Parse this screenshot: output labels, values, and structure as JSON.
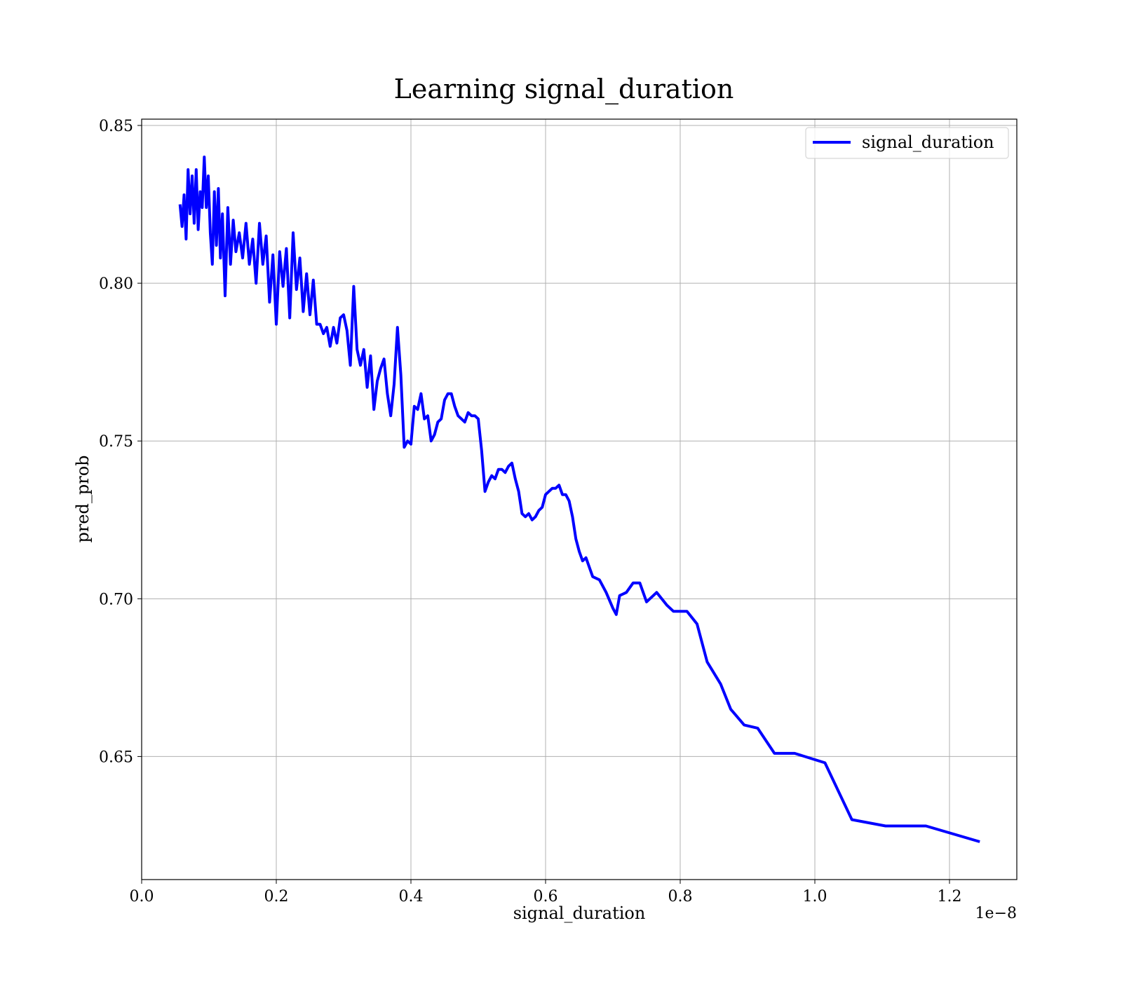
{
  "chart_data": {
    "type": "line",
    "title": "Learning signal_duration",
    "xlabel": "signal_duration",
    "ylabel": "pred_prob",
    "x_offset_label": "1e−8",
    "xlim": [
      0.0,
      1.3
    ],
    "ylim": [
      0.611,
      0.852
    ],
    "x_ticks": [
      0.0,
      0.2,
      0.4,
      0.6,
      0.8,
      1.0,
      1.2
    ],
    "x_tick_labels": [
      "0.0",
      "0.2",
      "0.4",
      "0.6",
      "0.8",
      "1.0",
      "1.2"
    ],
    "y_ticks": [
      0.65,
      0.7,
      0.75,
      0.8,
      0.85
    ],
    "y_tick_labels": [
      "0.65",
      "0.70",
      "0.75",
      "0.80",
      "0.85"
    ],
    "grid": true,
    "legend_position": "top-right",
    "series": [
      {
        "name": "signal_duration",
        "color": "#0000ff",
        "x": [
          0.057,
          0.06,
          0.063,
          0.066,
          0.069,
          0.072,
          0.075,
          0.078,
          0.081,
          0.084,
          0.087,
          0.09,
          0.093,
          0.096,
          0.099,
          0.102,
          0.105,
          0.108,
          0.111,
          0.114,
          0.117,
          0.12,
          0.124,
          0.128,
          0.132,
          0.136,
          0.14,
          0.145,
          0.15,
          0.155,
          0.16,
          0.165,
          0.17,
          0.175,
          0.18,
          0.185,
          0.19,
          0.195,
          0.2,
          0.205,
          0.21,
          0.215,
          0.22,
          0.225,
          0.23,
          0.235,
          0.24,
          0.245,
          0.25,
          0.255,
          0.26,
          0.265,
          0.27,
          0.275,
          0.28,
          0.285,
          0.29,
          0.295,
          0.3,
          0.305,
          0.31,
          0.315,
          0.32,
          0.325,
          0.33,
          0.335,
          0.34,
          0.345,
          0.35,
          0.355,
          0.36,
          0.365,
          0.37,
          0.375,
          0.38,
          0.385,
          0.39,
          0.395,
          0.4,
          0.405,
          0.41,
          0.415,
          0.42,
          0.425,
          0.43,
          0.435,
          0.44,
          0.445,
          0.45,
          0.455,
          0.46,
          0.465,
          0.47,
          0.475,
          0.48,
          0.485,
          0.49,
          0.495,
          0.5,
          0.505,
          0.51,
          0.515,
          0.52,
          0.525,
          0.53,
          0.535,
          0.54,
          0.545,
          0.55,
          0.555,
          0.56,
          0.565,
          0.57,
          0.575,
          0.58,
          0.585,
          0.59,
          0.595,
          0.6,
          0.605,
          0.61,
          0.615,
          0.62,
          0.625,
          0.63,
          0.635,
          0.64,
          0.645,
          0.65,
          0.655,
          0.66,
          0.67,
          0.68,
          0.69,
          0.7,
          0.705,
          0.71,
          0.72,
          0.73,
          0.74,
          0.75,
          0.765,
          0.78,
          0.79,
          0.81,
          0.825,
          0.84,
          0.86,
          0.875,
          0.895,
          0.915,
          0.94,
          0.97,
          1.015,
          1.055,
          1.105,
          1.165,
          1.245
        ],
        "values": [
          0.825,
          0.818,
          0.828,
          0.814,
          0.836,
          0.822,
          0.834,
          0.819,
          0.836,
          0.817,
          0.829,
          0.824,
          0.84,
          0.824,
          0.834,
          0.816,
          0.806,
          0.829,
          0.812,
          0.83,
          0.808,
          0.822,
          0.796,
          0.824,
          0.806,
          0.82,
          0.81,
          0.816,
          0.808,
          0.819,
          0.806,
          0.814,
          0.8,
          0.819,
          0.806,
          0.815,
          0.794,
          0.809,
          0.787,
          0.81,
          0.799,
          0.811,
          0.789,
          0.816,
          0.798,
          0.808,
          0.791,
          0.803,
          0.79,
          0.801,
          0.787,
          0.787,
          0.784,
          0.786,
          0.78,
          0.786,
          0.781,
          0.789,
          0.79,
          0.785,
          0.774,
          0.799,
          0.779,
          0.774,
          0.779,
          0.767,
          0.777,
          0.76,
          0.769,
          0.773,
          0.776,
          0.765,
          0.758,
          0.768,
          0.786,
          0.771,
          0.748,
          0.75,
          0.749,
          0.761,
          0.76,
          0.765,
          0.757,
          0.758,
          0.75,
          0.752,
          0.756,
          0.757,
          0.763,
          0.765,
          0.765,
          0.761,
          0.758,
          0.757,
          0.756,
          0.759,
          0.758,
          0.758,
          0.757,
          0.747,
          0.734,
          0.737,
          0.739,
          0.738,
          0.741,
          0.741,
          0.74,
          0.742,
          0.743,
          0.738,
          0.734,
          0.727,
          0.726,
          0.727,
          0.725,
          0.726,
          0.728,
          0.729,
          0.733,
          0.734,
          0.735,
          0.735,
          0.736,
          0.733,
          0.733,
          0.731,
          0.726,
          0.719,
          0.715,
          0.712,
          0.713,
          0.707,
          0.706,
          0.702,
          0.697,
          0.695,
          0.701,
          0.702,
          0.705,
          0.705,
          0.699,
          0.702,
          0.698,
          0.696,
          0.696,
          0.692,
          0.68,
          0.673,
          0.665,
          0.66,
          0.659,
          0.651,
          0.651,
          0.648,
          0.63,
          0.628,
          0.628,
          0.623
        ]
      }
    ]
  }
}
